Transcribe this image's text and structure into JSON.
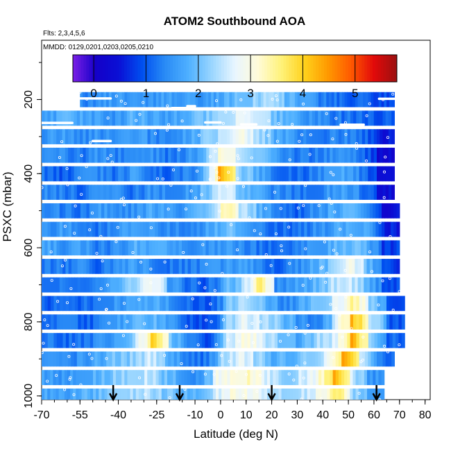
{
  "chart_data": {
    "type": "heatmap",
    "title": "ATOM2 Southbound AOA",
    "subtitle_flights": "Flts: 2,3,4,5,6",
    "subtitle_dates": "MMDD: 0129,0201,0203,0205,0210",
    "xlabel": "Latitude (deg N)",
    "ylabel": "PSXC (mbar)",
    "x_ticks": [
      "-70",
      "-55",
      "-40",
      "-25",
      "-10",
      "0",
      "10",
      "20",
      "30",
      "40",
      "50",
      "60",
      "70",
      "80"
    ],
    "x_tick_values": [
      -70,
      -55,
      -40,
      -25,
      -10,
      0,
      10,
      20,
      30,
      40,
      50,
      60,
      70,
      80
    ],
    "y_ticks": [
      "200",
      "400",
      "600",
      "800",
      "1000"
    ],
    "y_tick_values": [
      200,
      400,
      600,
      800,
      1000
    ],
    "xlim": [
      -70,
      82
    ],
    "ylim": [
      1010,
      40
    ],
    "colorbar": {
      "ticks": [
        "0",
        "1",
        "2",
        "3",
        "4",
        "5"
      ],
      "tick_values": [
        0,
        1,
        2,
        3,
        4,
        5
      ],
      "range": [
        -0.4,
        5.8
      ],
      "colors": [
        "#7b1fe6",
        "#1400c8",
        "#0a10d6",
        "#0050f0",
        "#2a8cf6",
        "#4fb0ff",
        "#9ad6ff",
        "#e9f6ff",
        "#fffbd8",
        "#fff27a",
        "#ffd21c",
        "#ff9a00",
        "#ff5a00",
        "#e20a0a",
        "#9a1010"
      ]
    },
    "profiles": [
      {
        "pressure": 200,
        "lat_range": [
          -55,
          68
        ],
        "values": [
          1.3,
          1.5,
          1.6,
          1.4,
          1.5,
          1.6,
          1.7,
          1.5,
          1.6,
          1.8,
          2.0,
          2.2,
          2.4,
          1.9,
          1.6,
          1.3,
          1.2,
          1.1,
          1.0,
          0.9
        ]
      },
      {
        "pressure": 250,
        "lat_range": [
          -70,
          68
        ],
        "values": [
          1.6,
          1.8,
          1.7,
          1.6,
          1.5,
          1.8,
          1.7,
          1.6,
          1.9,
          2.0,
          2.4,
          2.8,
          2.5,
          2.0,
          1.7,
          1.5,
          1.3,
          1.2,
          1.1,
          1.0
        ]
      },
      {
        "pressure": 300,
        "lat_range": [
          -70,
          68
        ],
        "values": [
          1.5,
          1.6,
          1.4,
          1.5,
          1.3,
          1.7,
          1.4,
          1.3,
          1.6,
          2.0,
          2.6,
          3.0,
          2.4,
          1.8,
          1.5,
          1.3,
          1.3,
          1.4,
          1.2,
          0.5
        ]
      },
      {
        "pressure": 350,
        "lat_range": [
          -70,
          68
        ],
        "values": [
          1.3,
          1.4,
          1.2,
          1.5,
          1.3,
          1.4,
          1.5,
          1.2,
          1.4,
          1.9,
          3.3,
          2.5,
          2.0,
          1.6,
          1.3,
          1.2,
          1.4,
          1.5,
          1.2,
          0.3
        ]
      },
      {
        "pressure": 400,
        "lat_range": [
          -70,
          68
        ],
        "values": [
          1.2,
          1.0,
          1.3,
          1.4,
          1.2,
          1.6,
          1.2,
          1.1,
          1.3,
          1.7,
          4.6,
          2.2,
          1.8,
          1.3,
          1.1,
          1.2,
          1.6,
          1.7,
          1.3,
          0.3
        ]
      },
      {
        "pressure": 450,
        "lat_range": [
          -70,
          68
        ],
        "values": [
          1.4,
          1.3,
          1.1,
          1.5,
          1.4,
          1.2,
          1.5,
          1.3,
          1.5,
          1.9,
          2.8,
          2.0,
          1.7,
          1.4,
          1.3,
          1.2,
          1.5,
          1.6,
          1.3,
          0.4
        ]
      },
      {
        "pressure": 500,
        "lat_range": [
          -70,
          70
        ],
        "values": [
          1.5,
          1.3,
          1.2,
          1.6,
          1.4,
          1.5,
          1.7,
          1.5,
          1.6,
          2.0,
          3.5,
          2.5,
          1.8,
          1.3,
          1.0,
          1.4,
          1.7,
          1.8,
          1.5,
          0.4
        ]
      },
      {
        "pressure": 550,
        "lat_range": [
          -70,
          70
        ],
        "values": [
          1.4,
          1.6,
          1.3,
          1.2,
          1.5,
          1.7,
          1.5,
          1.4,
          1.3,
          1.6,
          2.0,
          1.8,
          1.3,
          1.1,
          1.2,
          1.4,
          1.6,
          1.9,
          1.7,
          0.6
        ]
      },
      {
        "pressure": 600,
        "lat_range": [
          -70,
          70
        ],
        "values": [
          1.7,
          1.5,
          1.6,
          1.3,
          1.4,
          1.8,
          1.7,
          1.6,
          1.5,
          1.5,
          1.6,
          1.4,
          1.2,
          1.0,
          1.3,
          1.6,
          1.8,
          2.0,
          1.8,
          0.8
        ]
      },
      {
        "pressure": 650,
        "lat_range": [
          -70,
          70
        ],
        "values": [
          1.3,
          1.2,
          1.4,
          1.1,
          1.5,
          1.6,
          1.4,
          1.2,
          1.3,
          1.4,
          1.5,
          1.7,
          1.3,
          1.1,
          1.4,
          1.7,
          2.2,
          3.0,
          2.0,
          0.8
        ]
      },
      {
        "pressure": 700,
        "lat_range": [
          -70,
          70
        ],
        "values": [
          1.2,
          1.4,
          1.3,
          1.5,
          1.9,
          2.3,
          3.0,
          1.6,
          1.2,
          1.0,
          1.8,
          2.2,
          3.8,
          1.4,
          1.6,
          1.8,
          2.4,
          2.6,
          1.9,
          0.9
        ]
      },
      {
        "pressure": 750,
        "lat_range": [
          -70,
          72
        ],
        "values": [
          1.0,
          1.2,
          1.1,
          1.3,
          1.5,
          1.7,
          1.8,
          1.4,
          1.1,
          0.8,
          2.0,
          2.5,
          2.0,
          1.3,
          1.7,
          2.1,
          2.6,
          3.5,
          2.2,
          1.0
        ]
      },
      {
        "pressure": 800,
        "lat_range": [
          -70,
          72
        ],
        "values": [
          1.1,
          1.3,
          1.0,
          1.2,
          1.6,
          1.8,
          1.9,
          1.5,
          1.0,
          0.7,
          2.2,
          2.7,
          2.4,
          2.0,
          1.5,
          1.2,
          2.6,
          4.2,
          2.6,
          1.0
        ]
      },
      {
        "pressure": 850,
        "lat_range": [
          -70,
          72
        ],
        "values": [
          1.3,
          1.1,
          1.2,
          1.4,
          1.8,
          2.4,
          4.1,
          2.0,
          1.2,
          0.9,
          2.4,
          3.1,
          2.6,
          1.9,
          1.7,
          2.3,
          2.6,
          4.3,
          2.3,
          1.1
        ]
      },
      {
        "pressure": 900,
        "lat_range": [
          -70,
          68
        ],
        "values": [
          1.4,
          1.3,
          1.5,
          1.7,
          2.0,
          2.2,
          2.6,
          1.8,
          1.3,
          1.1,
          2.2,
          2.8,
          2.3,
          1.8,
          1.9,
          2.2,
          2.7,
          4.4,
          2.4,
          1.2
        ]
      },
      {
        "pressure": 950,
        "lat_range": [
          -70,
          64
        ],
        "values": [
          1.6,
          1.5,
          1.6,
          1.8,
          2.1,
          2.3,
          2.5,
          2.0,
          1.6,
          1.4,
          2.8,
          3.2,
          3.2,
          2.6,
          2.2,
          2.5,
          3.0,
          4.5,
          2.5,
          1.5
        ]
      },
      {
        "pressure": 1000,
        "lat_range": [
          -70,
          64
        ],
        "values": [
          1.7,
          1.6,
          1.8,
          1.9,
          2.2,
          2.3,
          2.4,
          2.1,
          1.9,
          1.8,
          2.6,
          3.0,
          2.9,
          2.5,
          2.2,
          2.4,
          2.8,
          3.8,
          2.3,
          1.6
        ]
      }
    ],
    "flight_tracks": [
      {
        "pressure": 197,
        "lat_range": [
          -55,
          -43
        ]
      },
      {
        "pressure": 198,
        "lat_range": [
          62,
          70
        ]
      },
      {
        "pressure": 223,
        "lat_range": [
          -19,
          -13
        ]
      },
      {
        "pressure": 218,
        "lat_range": [
          -13,
          -10
        ]
      },
      {
        "pressure": 263,
        "lat_range": [
          -70,
          -58
        ]
      },
      {
        "pressure": 262,
        "lat_range": [
          -6,
          0
        ]
      },
      {
        "pressure": 267,
        "lat_range": [
          8,
          14
        ]
      },
      {
        "pressure": 268,
        "lat_range": [
          47,
          56
        ]
      },
      {
        "pressure": 312,
        "lat_range": [
          -50,
          -43
        ]
      }
    ],
    "arrows_latitude": [
      -42,
      -16,
      20,
      61
    ]
  }
}
